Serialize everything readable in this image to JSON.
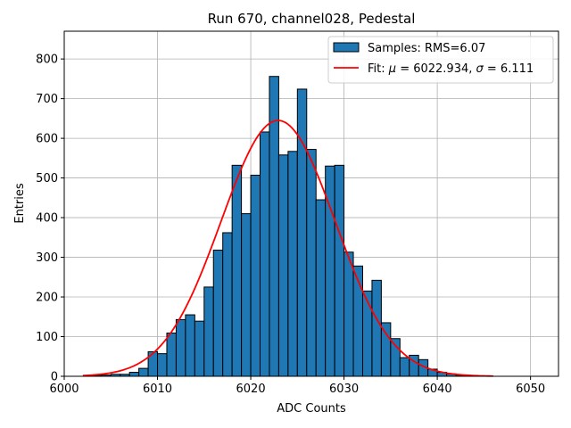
{
  "chart_data": {
    "type": "bar",
    "title": "Run 670, channel028, Pedestal",
    "xlabel": "ADC Counts",
    "ylabel": "Entries",
    "xlim": [
      6000,
      6053
    ],
    "ylim": [
      0,
      870
    ],
    "xticks": [
      6000,
      6010,
      6020,
      6030,
      6040,
      6050
    ],
    "yticks": [
      0,
      100,
      200,
      300,
      400,
      500,
      600,
      700,
      800
    ],
    "grid": true,
    "legend_position": "top-right",
    "bin_start": 6003,
    "bin_width": 1,
    "values": [
      2,
      3,
      5,
      5,
      10,
      20,
      62,
      57,
      109,
      143,
      155,
      139,
      225,
      318,
      362,
      532,
      410,
      507,
      616,
      756,
      558,
      567,
      724,
      572,
      445,
      530,
      532,
      313,
      278,
      215,
      242,
      135,
      95,
      47,
      53,
      42,
      18,
      10,
      6,
      2,
      2,
      1
    ],
    "series": [
      {
        "name": "Samples: RMS=6.07",
        "kind": "histogram",
        "color": "#1f77b4"
      },
      {
        "name": "Fit: μ = 6022.934, σ = 6.111",
        "kind": "gaussian",
        "color": "#ff0000",
        "mu": 6022.934,
        "sigma": 6.111,
        "amplitude": 645,
        "x_range": [
          6002,
          6046
        ]
      }
    ],
    "legend": {
      "samples_label": "Samples: RMS=6.07",
      "fit_prefix": "Fit: ",
      "fit_mu": "μ",
      "fit_mid": " = 6022.934, ",
      "fit_sigma": "σ",
      "fit_suffix": " = 6.111"
    }
  }
}
